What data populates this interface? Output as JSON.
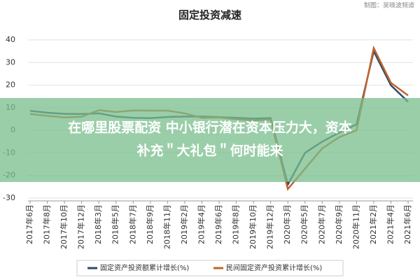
{
  "chart_data": {
    "type": "line",
    "title": "固定投资减速",
    "source": "制图：吴晓波频道",
    "categories": [
      "2017年6月",
      "2017年8月",
      "2017年10月",
      "2017年12月",
      "2018年3月",
      "2018年5月",
      "2018年7月",
      "2018年9月",
      "2018年11月",
      "2019年2月",
      "2019年4月",
      "2019年6月",
      "2019年8月",
      "2019年10月",
      "2019年12月",
      "2020年3月",
      "2020年5月",
      "2020年7月",
      "2020年9月",
      "2020年11月",
      "2021年2月",
      "2021年4月",
      "2021年6月"
    ],
    "series": [
      {
        "name": "固定资产投资额累计增长(%)",
        "color": "#2f4a6b",
        "values": [
          8.6,
          7.8,
          7.3,
          7.2,
          7.5,
          6.1,
          5.5,
          5.4,
          5.9,
          6.1,
          6.1,
          5.8,
          5.5,
          5.2,
          5.4,
          -24,
          -10,
          -5,
          -1,
          2.6,
          35,
          19.9,
          12.6
        ]
      },
      {
        "name": "民间固定资产投资累计增长(%)",
        "color": "#c0652e",
        "values": [
          7.2,
          6.4,
          5.7,
          6.0,
          8.9,
          8.1,
          8.8,
          8.7,
          8.7,
          7.5,
          5.5,
          5.7,
          4.9,
          4.4,
          4.7,
          -26,
          -17,
          -8,
          -3,
          0,
          36.4,
          21,
          15.4
        ]
      }
    ],
    "ylim": [
      -30,
      40
    ],
    "yticks": [
      -30,
      -20,
      -10,
      0,
      10,
      20,
      30,
      40
    ],
    "grid": true,
    "legend": "bottom"
  },
  "overlay": {
    "lines": [
      "在哪里股票配资 中小银行潜在资本压力大，资本",
      "补充＂大礼包＂何时能来"
    ],
    "color": "rgba(120,190,140,0.75)"
  }
}
